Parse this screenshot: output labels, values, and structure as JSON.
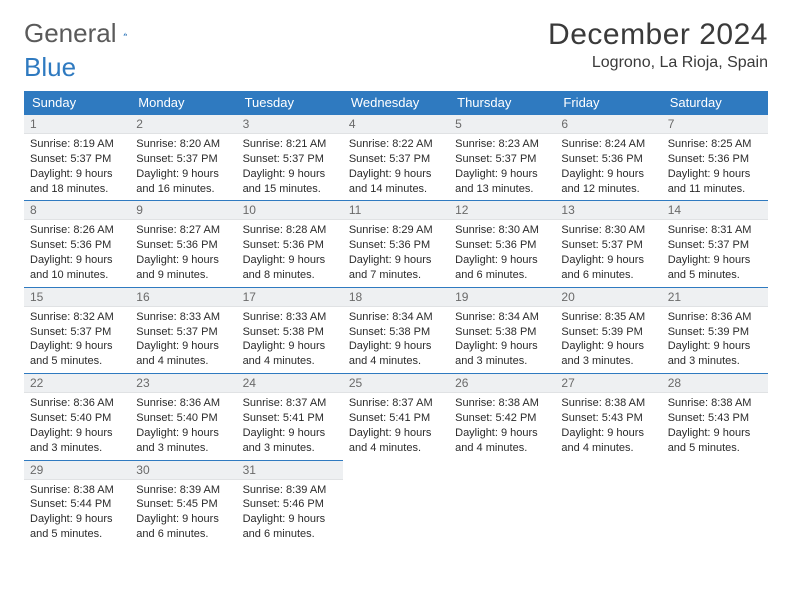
{
  "brand": {
    "word1": "General",
    "word2": "Blue"
  },
  "title": "December 2024",
  "location": "Logrono, La Rioja, Spain",
  "colors": {
    "header_bg": "#2f7ac0",
    "header_text": "#ffffff",
    "daynum_bg": "#eef0f2",
    "daynum_text": "#6a6a6a",
    "cell_border": "#2f7ac0",
    "body_text": "#2b2b2b",
    "logo_gray": "#5a5a5a"
  },
  "weekdays": [
    "Sunday",
    "Monday",
    "Tuesday",
    "Wednesday",
    "Thursday",
    "Friday",
    "Saturday"
  ],
  "weeks": [
    [
      {
        "n": "1",
        "sunrise": "8:19 AM",
        "sunset": "5:37 PM",
        "daylight": "9 hours and 18 minutes."
      },
      {
        "n": "2",
        "sunrise": "8:20 AM",
        "sunset": "5:37 PM",
        "daylight": "9 hours and 16 minutes."
      },
      {
        "n": "3",
        "sunrise": "8:21 AM",
        "sunset": "5:37 PM",
        "daylight": "9 hours and 15 minutes."
      },
      {
        "n": "4",
        "sunrise": "8:22 AM",
        "sunset": "5:37 PM",
        "daylight": "9 hours and 14 minutes."
      },
      {
        "n": "5",
        "sunrise": "8:23 AM",
        "sunset": "5:37 PM",
        "daylight": "9 hours and 13 minutes."
      },
      {
        "n": "6",
        "sunrise": "8:24 AM",
        "sunset": "5:36 PM",
        "daylight": "9 hours and 12 minutes."
      },
      {
        "n": "7",
        "sunrise": "8:25 AM",
        "sunset": "5:36 PM",
        "daylight": "9 hours and 11 minutes."
      }
    ],
    [
      {
        "n": "8",
        "sunrise": "8:26 AM",
        "sunset": "5:36 PM",
        "daylight": "9 hours and 10 minutes."
      },
      {
        "n": "9",
        "sunrise": "8:27 AM",
        "sunset": "5:36 PM",
        "daylight": "9 hours and 9 minutes."
      },
      {
        "n": "10",
        "sunrise": "8:28 AM",
        "sunset": "5:36 PM",
        "daylight": "9 hours and 8 minutes."
      },
      {
        "n": "11",
        "sunrise": "8:29 AM",
        "sunset": "5:36 PM",
        "daylight": "9 hours and 7 minutes."
      },
      {
        "n": "12",
        "sunrise": "8:30 AM",
        "sunset": "5:36 PM",
        "daylight": "9 hours and 6 minutes."
      },
      {
        "n": "13",
        "sunrise": "8:30 AM",
        "sunset": "5:37 PM",
        "daylight": "9 hours and 6 minutes."
      },
      {
        "n": "14",
        "sunrise": "8:31 AM",
        "sunset": "5:37 PM",
        "daylight": "9 hours and 5 minutes."
      }
    ],
    [
      {
        "n": "15",
        "sunrise": "8:32 AM",
        "sunset": "5:37 PM",
        "daylight": "9 hours and 5 minutes."
      },
      {
        "n": "16",
        "sunrise": "8:33 AM",
        "sunset": "5:37 PM",
        "daylight": "9 hours and 4 minutes."
      },
      {
        "n": "17",
        "sunrise": "8:33 AM",
        "sunset": "5:38 PM",
        "daylight": "9 hours and 4 minutes."
      },
      {
        "n": "18",
        "sunrise": "8:34 AM",
        "sunset": "5:38 PM",
        "daylight": "9 hours and 4 minutes."
      },
      {
        "n": "19",
        "sunrise": "8:34 AM",
        "sunset": "5:38 PM",
        "daylight": "9 hours and 3 minutes."
      },
      {
        "n": "20",
        "sunrise": "8:35 AM",
        "sunset": "5:39 PM",
        "daylight": "9 hours and 3 minutes."
      },
      {
        "n": "21",
        "sunrise": "8:36 AM",
        "sunset": "5:39 PM",
        "daylight": "9 hours and 3 minutes."
      }
    ],
    [
      {
        "n": "22",
        "sunrise": "8:36 AM",
        "sunset": "5:40 PM",
        "daylight": "9 hours and 3 minutes."
      },
      {
        "n": "23",
        "sunrise": "8:36 AM",
        "sunset": "5:40 PM",
        "daylight": "9 hours and 3 minutes."
      },
      {
        "n": "24",
        "sunrise": "8:37 AM",
        "sunset": "5:41 PM",
        "daylight": "9 hours and 3 minutes."
      },
      {
        "n": "25",
        "sunrise": "8:37 AM",
        "sunset": "5:41 PM",
        "daylight": "9 hours and 4 minutes."
      },
      {
        "n": "26",
        "sunrise": "8:38 AM",
        "sunset": "5:42 PM",
        "daylight": "9 hours and 4 minutes."
      },
      {
        "n": "27",
        "sunrise": "8:38 AM",
        "sunset": "5:43 PM",
        "daylight": "9 hours and 4 minutes."
      },
      {
        "n": "28",
        "sunrise": "8:38 AM",
        "sunset": "5:43 PM",
        "daylight": "9 hours and 5 minutes."
      }
    ],
    [
      {
        "n": "29",
        "sunrise": "8:38 AM",
        "sunset": "5:44 PM",
        "daylight": "9 hours and 5 minutes."
      },
      {
        "n": "30",
        "sunrise": "8:39 AM",
        "sunset": "5:45 PM",
        "daylight": "9 hours and 6 minutes."
      },
      {
        "n": "31",
        "sunrise": "8:39 AM",
        "sunset": "5:46 PM",
        "daylight": "9 hours and 6 minutes."
      },
      null,
      null,
      null,
      null
    ]
  ],
  "labels": {
    "sunrise": "Sunrise:",
    "sunset": "Sunset:",
    "daylight": "Daylight:"
  }
}
